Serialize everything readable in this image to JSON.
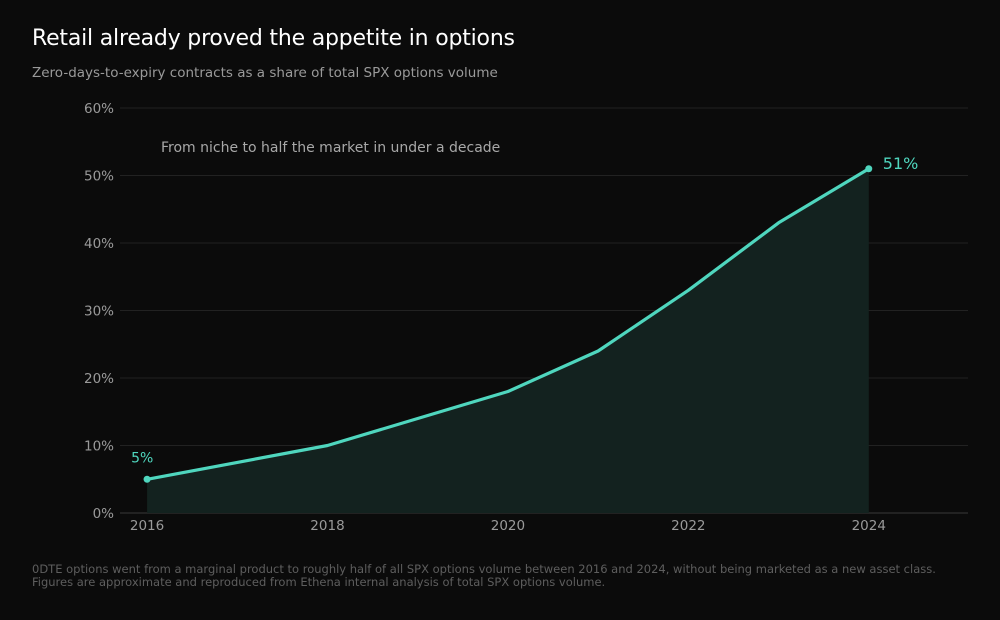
{
  "title": "Retail already proved the appetite in options",
  "subtitle": "Zero-days-to-expiry contracts as a share of total SPX options volume",
  "footnote": "0DTE options went from a marginal product to roughly half of all SPX options volume between 2016 and 2024, without being marketed as a new asset class. Figures are approximate and reproduced from Ethena internal analysis of total SPX options volume.",
  "colors": {
    "background": "#0b0b0b",
    "line": "#4fd6be",
    "area": "#13221f",
    "grid": "#222222",
    "tick_text": "#9a9a9a",
    "annotation_text": "#a8a8a8"
  },
  "chart_data": {
    "type": "area",
    "x": [
      2016,
      2017,
      2018,
      2019,
      2020,
      2021,
      2022,
      2023,
      2024
    ],
    "values": [
      5,
      7.5,
      10,
      14,
      18,
      24,
      33,
      43,
      51
    ],
    "ylim": [
      0,
      60
    ],
    "xlim": [
      2015.7,
      2025.1
    ],
    "yticks": [
      0,
      10,
      20,
      30,
      40,
      50,
      60
    ],
    "ytick_labels": [
      "0%",
      "10%",
      "20%",
      "30%",
      "40%",
      "50%",
      "60%"
    ],
    "xticks": [
      2016,
      2018,
      2020,
      2022,
      2024
    ],
    "xtick_labels": [
      "2016",
      "2018",
      "2020",
      "2022",
      "2024"
    ],
    "start_label": "5%",
    "end_label": "51%",
    "annotation": "From niche to half the market in under a decade",
    "grid": true,
    "legend": "none"
  }
}
